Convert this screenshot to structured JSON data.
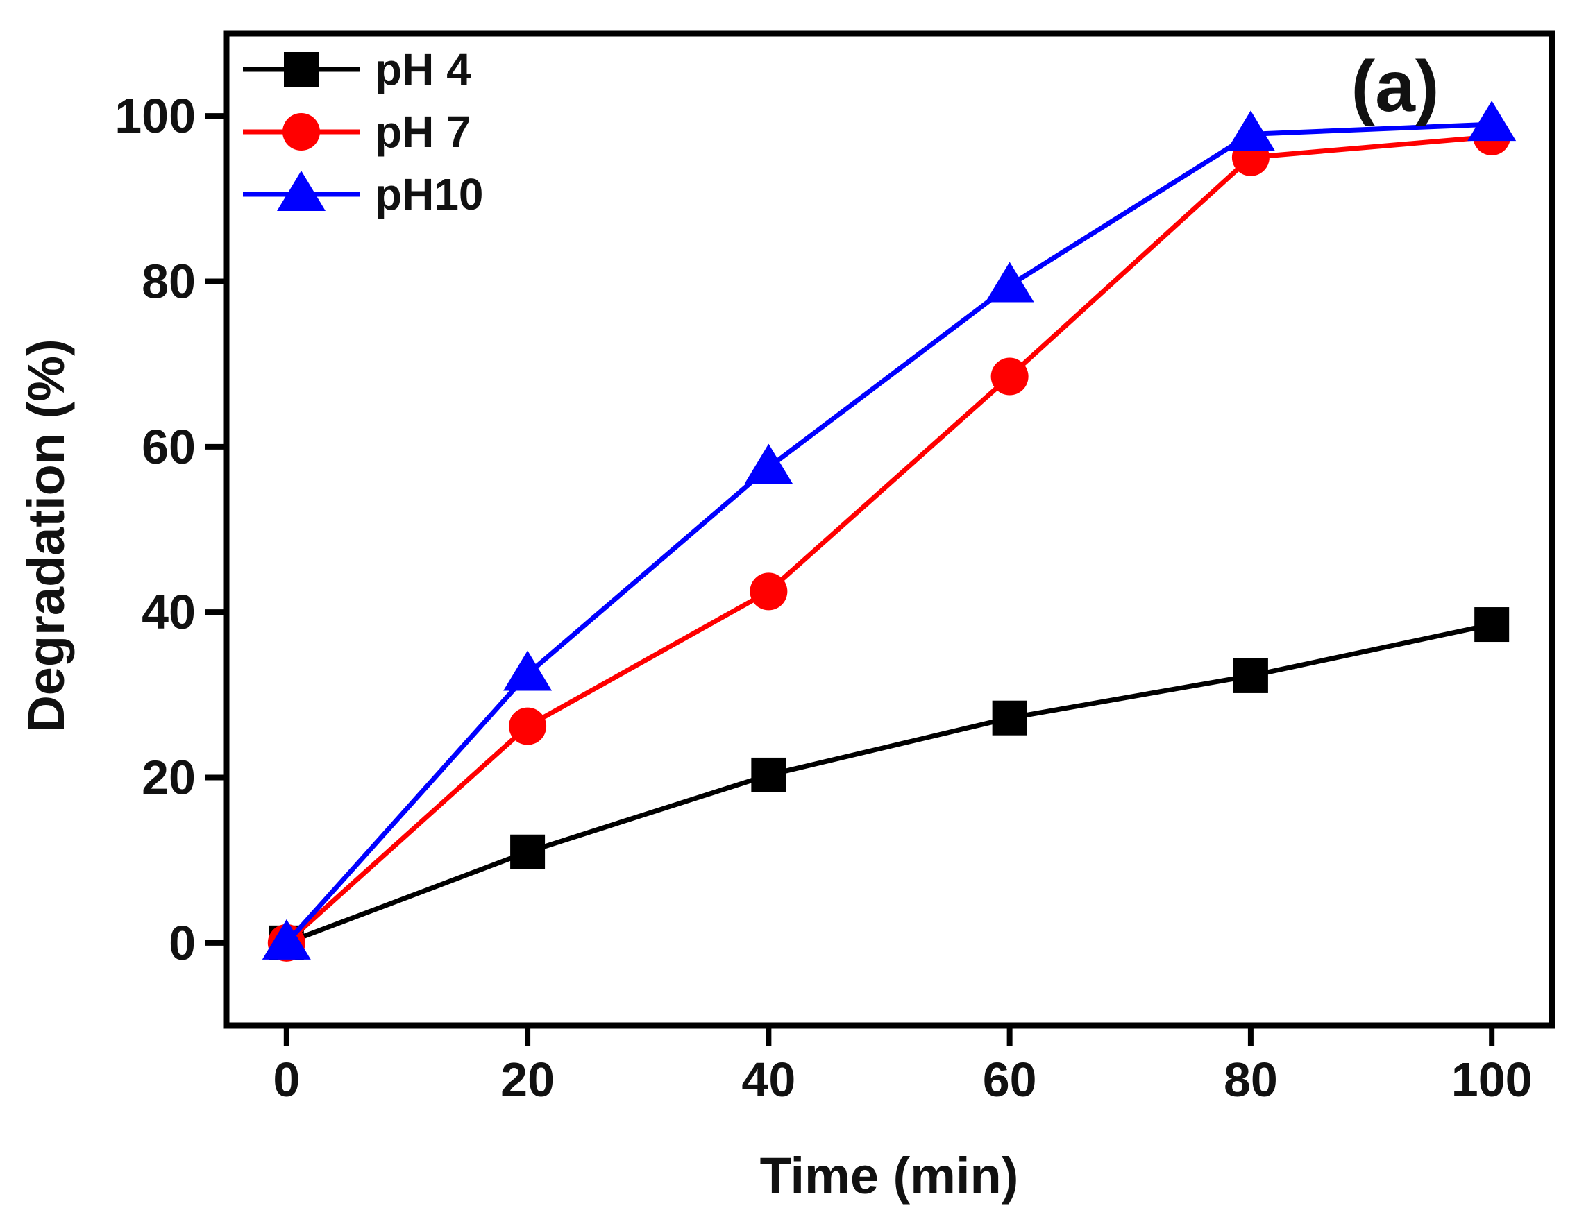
{
  "chart_data": {
    "type": "line",
    "title": "",
    "panel_label": "(a)",
    "xlabel": "Time (min)",
    "ylabel": "Degradation (%)",
    "x": [
      0,
      20,
      40,
      60,
      80,
      100
    ],
    "xlim": [
      -5,
      105
    ],
    "ylim": [
      -10,
      110
    ],
    "xticks": [
      "0",
      "20",
      "40",
      "60",
      "80",
      "100"
    ],
    "yticks": [
      "0",
      "20",
      "40",
      "60",
      "80",
      "100"
    ],
    "legend_position": "top-left",
    "grid": false,
    "series": [
      {
        "name": "pH 4",
        "marker": "square",
        "color": "#000000",
        "values": [
          0,
          11,
          20.3,
          27.2,
          32.3,
          38.5
        ]
      },
      {
        "name": "pH 7",
        "marker": "circle",
        "color": "#ff0000",
        "values": [
          0,
          26.2,
          42.5,
          68.5,
          95.0,
          97.5
        ]
      },
      {
        "name": "pH10",
        "marker": "triangle",
        "color": "#0000ff",
        "values": [
          0,
          32.5,
          57.5,
          79.5,
          97.8,
          99.0
        ]
      }
    ]
  }
}
